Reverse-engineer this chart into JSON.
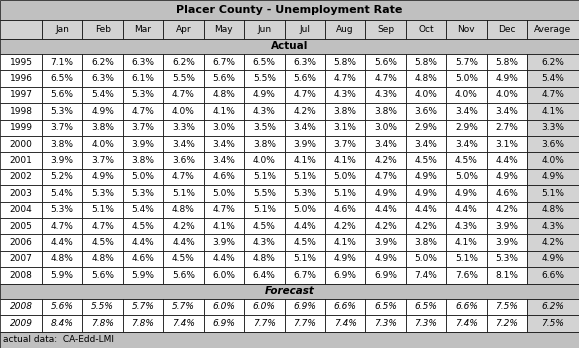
{
  "title": "Placer County - Unemployment Rate",
  "columns": [
    "",
    "Jan",
    "Feb",
    "Mar",
    "Apr",
    "May",
    "Jun",
    "Jul",
    "Aug",
    "Sep",
    "Oct",
    "Nov",
    "Dec",
    "Average"
  ],
  "actual_label": "Actual",
  "forecast_label": "Forecast",
  "footnote": "actual data:  CA-Edd-LMI",
  "actual_rows": [
    [
      "1995",
      "7.1%",
      "6.2%",
      "6.3%",
      "6.2%",
      "6.7%",
      "6.5%",
      "6.3%",
      "5.8%",
      "5.6%",
      "5.8%",
      "5.7%",
      "5.8%",
      "6.2%"
    ],
    [
      "1996",
      "6.5%",
      "6.3%",
      "6.1%",
      "5.5%",
      "5.6%",
      "5.5%",
      "5.6%",
      "4.7%",
      "4.7%",
      "4.8%",
      "5.0%",
      "4.9%",
      "5.4%"
    ],
    [
      "1997",
      "5.6%",
      "5.4%",
      "5.3%",
      "4.7%",
      "4.8%",
      "4.9%",
      "4.7%",
      "4.3%",
      "4.3%",
      "4.0%",
      "4.0%",
      "4.0%",
      "4.7%"
    ],
    [
      "1998",
      "5.3%",
      "4.9%",
      "4.7%",
      "4.0%",
      "4.1%",
      "4.3%",
      "4.2%",
      "3.8%",
      "3.8%",
      "3.6%",
      "3.4%",
      "3.4%",
      "4.1%"
    ],
    [
      "1999",
      "3.7%",
      "3.8%",
      "3.7%",
      "3.3%",
      "3.0%",
      "3.5%",
      "3.4%",
      "3.1%",
      "3.0%",
      "2.9%",
      "2.9%",
      "2.7%",
      "3.3%"
    ],
    [
      "2000",
      "3.8%",
      "4.0%",
      "3.9%",
      "3.4%",
      "3.4%",
      "3.8%",
      "3.9%",
      "3.7%",
      "3.4%",
      "3.4%",
      "3.4%",
      "3.1%",
      "3.6%"
    ],
    [
      "2001",
      "3.9%",
      "3.7%",
      "3.8%",
      "3.6%",
      "3.4%",
      "4.0%",
      "4.1%",
      "4.1%",
      "4.2%",
      "4.5%",
      "4.5%",
      "4.4%",
      "4.0%"
    ],
    [
      "2002",
      "5.2%",
      "4.9%",
      "5.0%",
      "4.7%",
      "4.6%",
      "5.1%",
      "5.1%",
      "5.0%",
      "4.7%",
      "4.9%",
      "5.0%",
      "4.9%",
      "4.9%"
    ],
    [
      "2003",
      "5.4%",
      "5.3%",
      "5.3%",
      "5.1%",
      "5.0%",
      "5.5%",
      "5.3%",
      "5.1%",
      "4.9%",
      "4.9%",
      "4.9%",
      "4.6%",
      "5.1%"
    ],
    [
      "2004",
      "5.3%",
      "5.1%",
      "5.4%",
      "4.8%",
      "4.7%",
      "5.1%",
      "5.0%",
      "4.6%",
      "4.4%",
      "4.4%",
      "4.4%",
      "4.2%",
      "4.8%"
    ],
    [
      "2005",
      "4.7%",
      "4.7%",
      "4.5%",
      "4.2%",
      "4.1%",
      "4.5%",
      "4.4%",
      "4.2%",
      "4.2%",
      "4.2%",
      "4.3%",
      "3.9%",
      "4.3%"
    ],
    [
      "2006",
      "4.4%",
      "4.5%",
      "4.4%",
      "4.4%",
      "3.9%",
      "4.3%",
      "4.5%",
      "4.1%",
      "3.9%",
      "3.8%",
      "4.1%",
      "3.9%",
      "4.2%"
    ],
    [
      "2007",
      "4.8%",
      "4.8%",
      "4.6%",
      "4.5%",
      "4.4%",
      "4.8%",
      "5.1%",
      "4.9%",
      "4.9%",
      "5.0%",
      "5.1%",
      "5.3%",
      "4.9%"
    ],
    [
      "2008",
      "5.9%",
      "5.6%",
      "5.9%",
      "5.6%",
      "6.0%",
      "6.4%",
      "6.7%",
      "6.9%",
      "6.9%",
      "7.4%",
      "7.6%",
      "8.1%",
      "6.6%"
    ]
  ],
  "forecast_rows": [
    [
      "2008",
      "5.6%",
      "5.5%",
      "5.7%",
      "5.7%",
      "6.0%",
      "6.0%",
      "6.9%",
      "6.6%",
      "6.5%",
      "6.5%",
      "6.6%",
      "7.5%",
      "6.2%"
    ],
    [
      "2009",
      "8.4%",
      "7.8%",
      "7.8%",
      "7.4%",
      "6.9%",
      "7.7%",
      "7.7%",
      "7.4%",
      "7.3%",
      "7.3%",
      "7.4%",
      "7.2%",
      "7.5%"
    ]
  ],
  "title_bg": "#c0c0c0",
  "header_bg": "#d3d3d3",
  "section_bg": "#c0c0c0",
  "white_bg": "#ffffff",
  "avg_bg": "#d3d3d3",
  "footnote_bg": "#c0c0c0"
}
